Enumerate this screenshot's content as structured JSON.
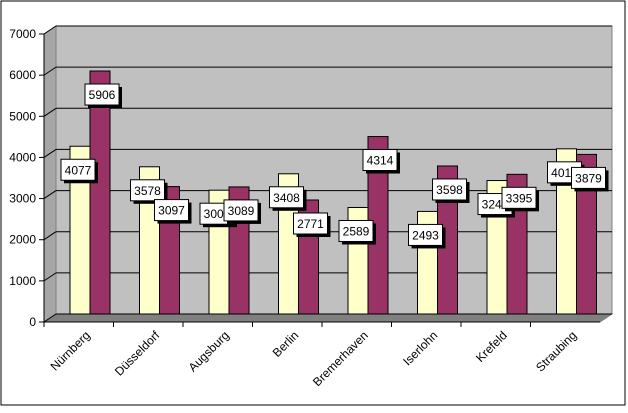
{
  "chart_data": {
    "type": "bar",
    "categories": [
      "Nürnberg",
      "Düsseldorf",
      "Augsburg",
      "Berlin",
      "Bremerhaven",
      "Iserlohn",
      "Krefeld",
      "Straubing"
    ],
    "series": [
      {
        "values": [
          4077,
          3578,
          3009,
          3408,
          2589,
          2493,
          3244,
          4015
        ],
        "color": "#FFFFCC"
      },
      {
        "values": [
          5906,
          3097,
          3089,
          2771,
          4314,
          3598,
          3395,
          3879
        ],
        "color": "#993366"
      }
    ],
    "yticks": [
      "0",
      "1000",
      "2000",
      "3000",
      "4000",
      "5000",
      "6000",
      "7000"
    ],
    "ylim": [
      0,
      7000
    ],
    "grid": true,
    "legend": "none",
    "plot_background": "#C0C0C0",
    "bar_edge_color": "#000000"
  }
}
